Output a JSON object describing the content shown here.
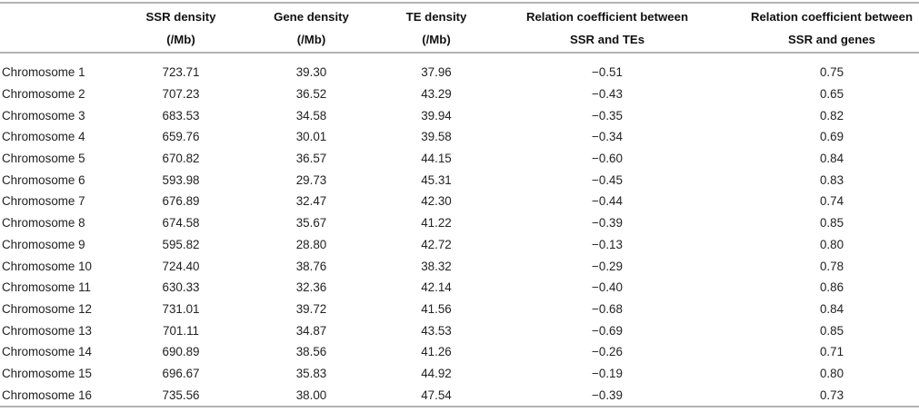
{
  "table": {
    "columns": [
      {
        "line1": "",
        "line2": ""
      },
      {
        "line1": "SSR density",
        "line2": "(/Mb)"
      },
      {
        "line1": "Gene density",
        "line2": "(/Mb)"
      },
      {
        "line1": "TE density",
        "line2": "(/Mb)"
      },
      {
        "line1": "Relation coefficient between",
        "line2": "SSR and TEs"
      },
      {
        "line1": "Relation coefficient between",
        "line2": "SSR and genes"
      }
    ],
    "rows": [
      [
        "Chromosome 1",
        "723.71",
        "39.30",
        "37.96",
        "−0.51",
        "0.75"
      ],
      [
        "Chromosome 2",
        "707.23",
        "36.52",
        "43.29",
        "−0.43",
        "0.65"
      ],
      [
        "Chromosome 3",
        "683.53",
        "34.58",
        "39.94",
        "−0.35",
        "0.82"
      ],
      [
        "Chromosome 4",
        "659.76",
        "30.01",
        "39.58",
        "−0.34",
        "0.69"
      ],
      [
        "Chromosome 5",
        "670.82",
        "36.57",
        "44.15",
        "−0.60",
        "0.84"
      ],
      [
        "Chromosome 6",
        "593.98",
        "29.73",
        "45.31",
        "−0.45",
        "0.83"
      ],
      [
        "Chromosome 7",
        "676.89",
        "32.47",
        "42.30",
        "−0.44",
        "0.74"
      ],
      [
        "Chromosome 8",
        "674.58",
        "35.67",
        "41.22",
        "−0.39",
        "0.85"
      ],
      [
        "Chromosome 9",
        "595.82",
        "28.80",
        "42.72",
        "−0.13",
        "0.80"
      ],
      [
        "Chromosome 10",
        "724.40",
        "38.76",
        "38.32",
        "−0.29",
        "0.78"
      ],
      [
        "Chromosome 11",
        "630.33",
        "32.36",
        "42.14",
        "−0.40",
        "0.86"
      ],
      [
        "Chromosome 12",
        "731.01",
        "39.72",
        "41.56",
        "−0.68",
        "0.84"
      ],
      [
        "Chromosome 13",
        "701.11",
        "34.87",
        "43.53",
        "−0.69",
        "0.85"
      ],
      [
        "Chromosome 14",
        "690.89",
        "38.56",
        "41.26",
        "−0.26",
        "0.71"
      ],
      [
        "Chromosome 15",
        "696.67",
        "35.83",
        "44.92",
        "−0.19",
        "0.80"
      ],
      [
        "Chromosome 16",
        "735.56",
        "38.00",
        "47.54",
        "−0.39",
        "0.73"
      ]
    ]
  },
  "colors": {
    "rule": "#b2b2b2",
    "header_text": "#111111",
    "body_text": "#222222",
    "background": "#ffffff"
  }
}
